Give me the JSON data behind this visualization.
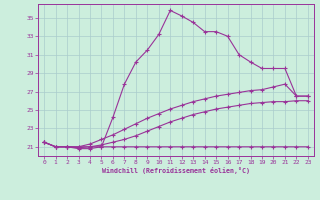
{
  "xlabel": "Windchill (Refroidissement éolien,°C)",
  "xlim": [
    -0.5,
    23.5
  ],
  "ylim": [
    20.0,
    36.5
  ],
  "yticks": [
    21,
    23,
    25,
    27,
    29,
    31,
    33,
    35
  ],
  "xticks": [
    0,
    1,
    2,
    3,
    4,
    5,
    6,
    7,
    8,
    9,
    10,
    11,
    12,
    13,
    14,
    15,
    16,
    17,
    18,
    19,
    20,
    21,
    22,
    23
  ],
  "bg_color": "#cceedd",
  "line_color": "#993399",
  "grid_color": "#aacccc",
  "curves": [
    {
      "x": [
        0,
        1,
        2,
        3,
        4,
        5,
        6,
        7,
        8,
        9,
        10,
        11,
        12,
        13,
        14,
        15,
        16,
        17,
        18,
        19,
        20,
        21,
        22,
        23
      ],
      "y": [
        21.5,
        21.0,
        21.0,
        20.9,
        21.0,
        21.0,
        21.0,
        21.0,
        21.0,
        21.0,
        21.0,
        21.0,
        21.0,
        21.0,
        21.0,
        21.0,
        21.0,
        21.0,
        21.0,
        21.0,
        21.0,
        21.0,
        21.0,
        21.0
      ]
    },
    {
      "x": [
        0,
        1,
        2,
        3,
        4,
        5,
        6,
        7,
        8,
        9,
        10,
        11,
        12,
        13,
        14,
        15,
        16,
        17,
        18,
        19,
        20,
        21,
        22,
        23
      ],
      "y": [
        21.5,
        21.0,
        21.0,
        21.0,
        21.0,
        21.2,
        21.5,
        21.8,
        22.2,
        22.7,
        23.2,
        23.7,
        24.1,
        24.5,
        24.8,
        25.1,
        25.3,
        25.5,
        25.7,
        25.8,
        25.9,
        25.9,
        26.0,
        26.0
      ]
    },
    {
      "x": [
        0,
        1,
        2,
        3,
        4,
        5,
        6,
        7,
        8,
        9,
        10,
        11,
        12,
        13,
        14,
        15,
        16,
        17,
        18,
        19,
        20,
        21,
        22,
        23
      ],
      "y": [
        21.5,
        21.0,
        21.0,
        21.0,
        21.3,
        21.8,
        22.3,
        22.9,
        23.5,
        24.1,
        24.6,
        25.1,
        25.5,
        25.9,
        26.2,
        26.5,
        26.7,
        26.9,
        27.1,
        27.2,
        27.5,
        27.8,
        26.5,
        26.5
      ]
    },
    {
      "x": [
        0,
        1,
        2,
        3,
        4,
        5,
        6,
        7,
        8,
        9,
        10,
        11,
        12,
        13,
        14,
        15,
        16,
        17,
        18,
        19,
        20,
        21,
        22,
        23
      ],
      "y": [
        21.5,
        21.0,
        21.0,
        20.8,
        20.8,
        21.0,
        24.2,
        27.8,
        30.2,
        31.5,
        33.2,
        35.8,
        35.2,
        34.5,
        33.5,
        33.5,
        33.0,
        31.0,
        30.2,
        29.5,
        29.5,
        29.5,
        26.5,
        26.5
      ]
    }
  ]
}
